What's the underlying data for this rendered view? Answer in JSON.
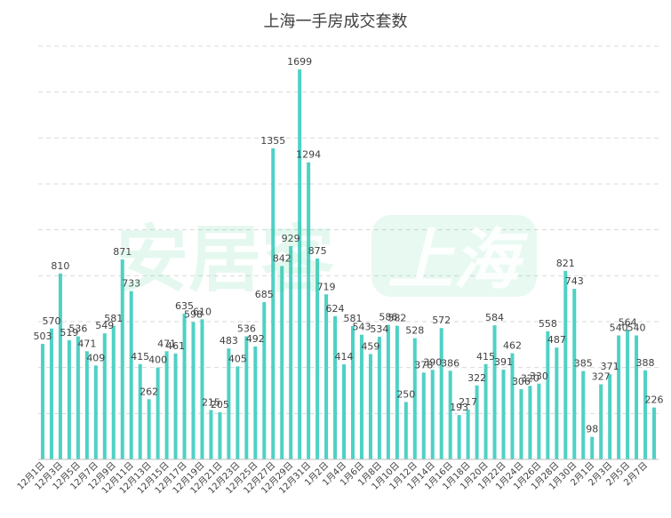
{
  "chart_data": {
    "type": "bar",
    "title": "上海一手房成交套数",
    "xlabel": "",
    "ylabel": "",
    "ylim": [
      0,
      1800
    ],
    "grid": true,
    "legend": "none",
    "bar_color": "#4fd1c5",
    "grid_color": "#d9d9d9",
    "label_color": "#404040",
    "categories": [
      "12月1日",
      "12月2日",
      "12月3日",
      "12月4日",
      "12月5日",
      "12月6日",
      "12月7日",
      "12月8日",
      "12月9日",
      "12月10日",
      "12月11日",
      "12月12日",
      "12月13日",
      "12月14日",
      "12月15日",
      "12月16日",
      "12月17日",
      "12月18日",
      "12月19日",
      "12月20日",
      "12月21日",
      "12月22日",
      "12月23日",
      "12月24日",
      "12月25日",
      "12月26日",
      "12月27日",
      "12月28日",
      "12月29日",
      "12月30日",
      "12月31日",
      "1月1日",
      "1月2日",
      "1月3日",
      "1月4日",
      "1月5日",
      "1月6日",
      "1月7日",
      "1月8日",
      "1月9日",
      "1月10日",
      "1月11日",
      "1月12日",
      "1月13日",
      "1月14日",
      "1月15日",
      "1月16日",
      "1月17日",
      "1月18日",
      "1月19日",
      "1月20日",
      "1月21日",
      "1月22日",
      "1月23日",
      "1月24日",
      "1月25日",
      "1月26日",
      "1月27日",
      "1月28日",
      "1月29日",
      "1月30日",
      "1月31日",
      "2月1日",
      "2月2日",
      "2月3日",
      "2月4日",
      "2月5日",
      "2月6日",
      "2月7日",
      "2月8日"
    ],
    "tick_labels_shown": [
      "12月1日",
      "12月3日",
      "12月5日",
      "12月7日",
      "12月9日",
      "12月11日",
      "12月13日",
      "12月15日",
      "12月17日",
      "12月19日",
      "12月21日",
      "12月23日",
      "12月25日",
      "12月27日",
      "12月29日",
      "12月31日",
      "1月2日",
      "1月4日",
      "1月6日",
      "1月8日",
      "1月10日",
      "1月12日",
      "1月14日",
      "1月16日",
      "1月18日",
      "1月20日",
      "1月22日",
      "1月24日",
      "1月26日",
      "1月28日",
      "1月30日",
      "2月1日",
      "2月3日",
      "2月5日",
      "2月7日"
    ],
    "values": [
      503,
      570,
      810,
      519,
      536,
      471,
      409,
      549,
      581,
      871,
      733,
      415,
      262,
      400,
      471,
      461,
      635,
      598,
      610,
      215,
      205,
      483,
      405,
      536,
      492,
      685,
      1355,
      842,
      929,
      1699,
      1294,
      875,
      719,
      624,
      414,
      581,
      543,
      459,
      534,
      586,
      582,
      250,
      528,
      378,
      390,
      572,
      386,
      193,
      217,
      322,
      415,
      584,
      391,
      462,
      306,
      320,
      330,
      558,
      487,
      821,
      743,
      385,
      98,
      327,
      371,
      540,
      564,
      540,
      388,
      226
    ]
  },
  "watermark": {
    "brand_text": "安居客",
    "city_text": "上海"
  }
}
